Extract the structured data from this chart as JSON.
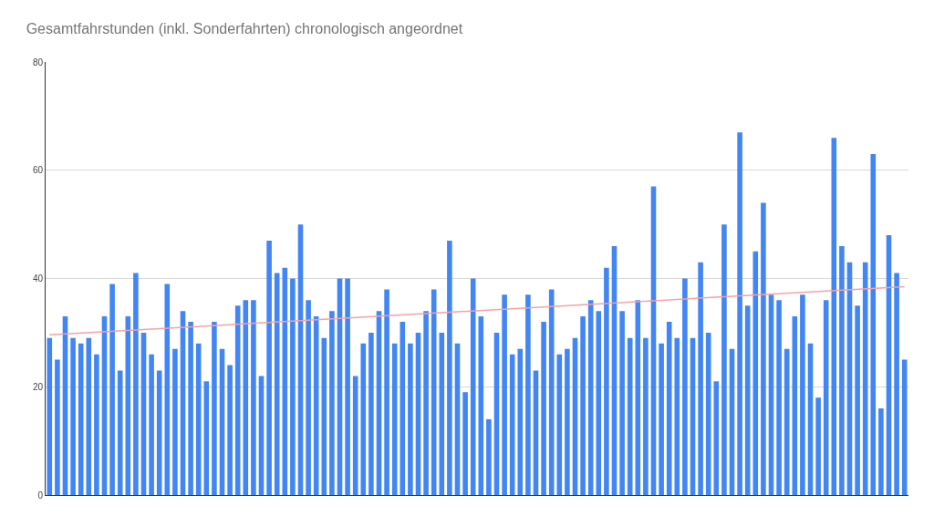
{
  "chart_data": {
    "type": "bar",
    "title": "Gesamtfahrstunden (inkl. Sonderfahrten) chronologisch angeordnet",
    "categories": [
      null,
      null,
      null,
      null,
      null,
      null,
      null,
      null,
      null,
      null,
      null,
      null,
      null,
      null,
      null,
      null,
      null,
      null,
      null,
      null,
      null,
      null,
      null,
      null,
      null,
      null,
      null,
      null,
      null,
      null,
      null,
      null,
      null,
      null,
      null,
      null,
      null,
      null,
      null,
      null,
      null,
      null,
      null,
      null,
      null,
      null,
      null,
      null,
      null,
      null,
      null,
      null,
      null,
      null,
      null,
      null,
      null,
      null,
      null,
      null,
      null,
      null,
      null,
      null,
      null,
      null,
      null,
      null,
      null,
      null,
      null,
      null,
      null,
      null,
      null,
      null,
      null,
      null,
      null,
      null,
      null,
      null,
      null,
      null,
      null,
      null,
      null,
      null,
      null,
      null,
      null,
      null,
      null,
      null,
      null,
      null,
      null,
      null,
      null,
      null,
      null,
      null,
      null,
      null,
      null,
      null,
      null,
      null,
      null,
      null
    ],
    "series": [
      {
        "color": "#4285f4",
        "values": [
          29,
          25,
          33,
          29,
          28,
          29,
          26,
          33,
          39,
          23,
          33,
          41,
          30,
          26,
          23,
          39,
          27,
          34,
          32,
          28,
          21,
          32,
          27,
          24,
          35,
          36,
          36,
          22,
          47,
          41,
          42,
          40,
          50,
          36,
          33,
          29,
          34,
          40,
          40,
          22,
          28,
          30,
          34,
          38,
          28,
          32,
          28,
          30,
          34,
          38,
          30,
          47,
          28,
          19,
          40,
          33,
          14,
          30,
          37,
          26,
          27,
          37,
          23,
          32,
          38,
          26,
          27,
          29,
          33,
          36,
          34,
          42,
          46,
          34,
          29,
          36,
          29,
          57,
          28,
          32,
          29,
          40,
          29,
          43,
          30,
          21,
          50,
          27,
          67,
          35,
          45,
          54,
          37,
          36,
          27,
          33,
          37,
          28,
          18,
          36,
          66,
          46,
          43,
          35,
          43,
          63,
          16,
          48,
          41,
          25
        ]
      },
      {
        "type": "line",
        "color": "#f4a3a3",
        "values": [
          29.6,
          null,
          null,
          null,
          null,
          null,
          null,
          null,
          null,
          null,
          null,
          null,
          null,
          null,
          null,
          null,
          null,
          null,
          null,
          null,
          null,
          null,
          null,
          null,
          null,
          null,
          null,
          null,
          null,
          null,
          null,
          null,
          null,
          null,
          null,
          null,
          null,
          null,
          null,
          null,
          null,
          null,
          null,
          null,
          null,
          null,
          null,
          null,
          null,
          null,
          null,
          null,
          null,
          null,
          null,
          null,
          null,
          null,
          null,
          null,
          null,
          null,
          null,
          null,
          null,
          null,
          null,
          null,
          null,
          null,
          null,
          null,
          null,
          null,
          null,
          null,
          null,
          null,
          null,
          null,
          null,
          null,
          null,
          null,
          null,
          null,
          null,
          null,
          null,
          null,
          null,
          null,
          null,
          null,
          null,
          null,
          null,
          null,
          null,
          null,
          null,
          null,
          null,
          null,
          null,
          null,
          null,
          null,
          null,
          38.5
        ]
      }
    ],
    "ylim": [
      0,
      80
    ],
    "yticks": [
      0,
      20,
      40,
      60,
      80
    ],
    "grid": "y",
    "tick_labels": "y"
  }
}
